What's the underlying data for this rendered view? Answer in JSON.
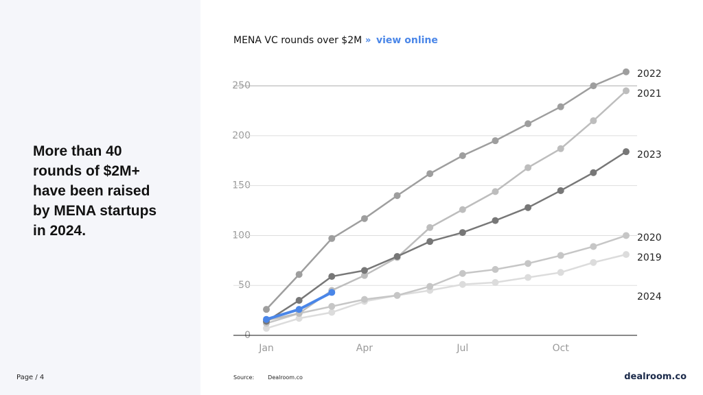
{
  "headline_lines": [
    "More than 40",
    "rounds of $2M+",
    "have been raised",
    "by MENA startups",
    "in 2024."
  ],
  "page_label": "Page / 4",
  "source_label": "Source:",
  "source": "Dealroom.co",
  "logo": "dealroom.co",
  "chart_data": {
    "type": "line",
    "title": "MENA VC rounds over $2M",
    "link_prefix": "»",
    "link": "view online",
    "categories": [
      "Jan",
      null,
      null,
      "Apr",
      null,
      null,
      "Jul",
      null,
      null,
      "Oct",
      null,
      null
    ],
    "ylim": [
      0,
      270
    ],
    "yticks": [
      0,
      50,
      100,
      150,
      200,
      250
    ],
    "grid": true,
    "series": [
      {
        "name": "2019",
        "color": "#dcdcdc",
        "values": [
          7,
          17,
          23,
          34,
          40,
          45,
          51,
          53,
          58,
          63,
          73,
          81
        ]
      },
      {
        "name": "2020",
        "color": "#c6c6c6",
        "values": [
          12,
          22,
          29,
          36,
          40,
          49,
          62,
          66,
          72,
          80,
          89,
          100
        ]
      },
      {
        "name": "2021",
        "color": "#bdbdbd",
        "values": [
          15,
          22,
          45,
          60,
          78,
          108,
          126,
          144,
          168,
          187,
          215,
          245
        ]
      },
      {
        "name": "2022",
        "color": "#9e9e9e",
        "values": [
          26,
          61,
          97,
          117,
          140,
          162,
          180,
          195,
          212,
          229,
          250,
          264
        ]
      },
      {
        "name": "2023",
        "color": "#777777",
        "values": [
          14,
          35,
          59,
          65,
          79,
          94,
          103,
          115,
          128,
          145,
          163,
          184
        ]
      },
      {
        "name": "2024",
        "color": "#4a86e8",
        "values": [
          16,
          26,
          43,
          null,
          null,
          null,
          null,
          null,
          null,
          null,
          null,
          null
        ]
      }
    ]
  }
}
